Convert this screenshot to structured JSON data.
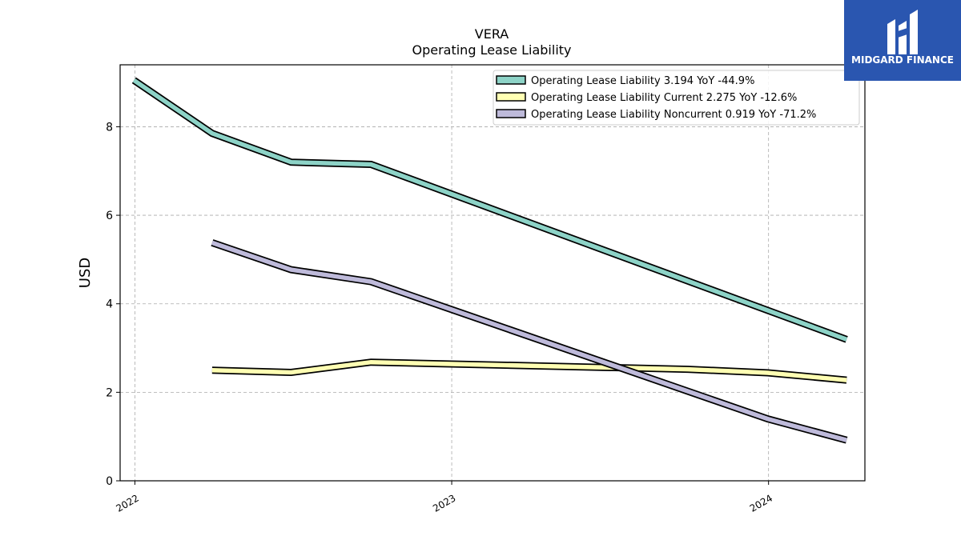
{
  "chart_data": {
    "type": "line",
    "title": "VERA",
    "subtitle": "Operating Lease Liability",
    "ylabel": "USD",
    "xlabel": "",
    "ylim": [
      0,
      9.4
    ],
    "yticks": [
      0,
      2,
      4,
      6,
      8
    ],
    "xlim": [
      "2021-12-15",
      "2024-04-21"
    ],
    "xticks": [
      {
        "date": "2022-01-01",
        "label": "2022"
      },
      {
        "date": "2023-01-01",
        "label": "2023"
      },
      {
        "date": "2024-01-01",
        "label": "2024"
      }
    ],
    "grid": true,
    "legend_position": "top-right",
    "series": [
      {
        "name": "Operating Lease Liability  3.194 YoY -44.9%",
        "color": "#8dd3c7",
        "points": [
          {
            "x": "2021-12-31",
            "y": 9.05
          },
          {
            "x": "2022-03-31",
            "y": 7.85
          },
          {
            "x": "2022-06-30",
            "y": 7.2
          },
          {
            "x": "2022-09-30",
            "y": 7.15
          },
          {
            "x": "2024-03-31",
            "y": 3.194
          }
        ]
      },
      {
        "name": "Operating Lease Liability Current  2.275 YoY -12.6%",
        "color": "#ffffb3",
        "points": [
          {
            "x": "2022-03-31",
            "y": 2.5
          },
          {
            "x": "2022-06-30",
            "y": 2.45
          },
          {
            "x": "2022-09-30",
            "y": 2.68
          },
          {
            "x": "2023-09-30",
            "y": 2.52
          },
          {
            "x": "2023-12-31",
            "y": 2.44
          },
          {
            "x": "2024-03-31",
            "y": 2.275
          }
        ]
      },
      {
        "name": "Operating Lease Liability Noncurrent  0.919 YoY -71.2%",
        "color": "#bebada",
        "points": [
          {
            "x": "2022-03-31",
            "y": 5.38
          },
          {
            "x": "2022-06-30",
            "y": 4.77
          },
          {
            "x": "2022-09-30",
            "y": 4.5
          },
          {
            "x": "2023-12-31",
            "y": 1.4
          },
          {
            "x": "2024-03-31",
            "y": 0.919
          }
        ]
      }
    ]
  },
  "logo": {
    "text": "MIDGARD FINANCE",
    "color": "#2a56b0"
  }
}
